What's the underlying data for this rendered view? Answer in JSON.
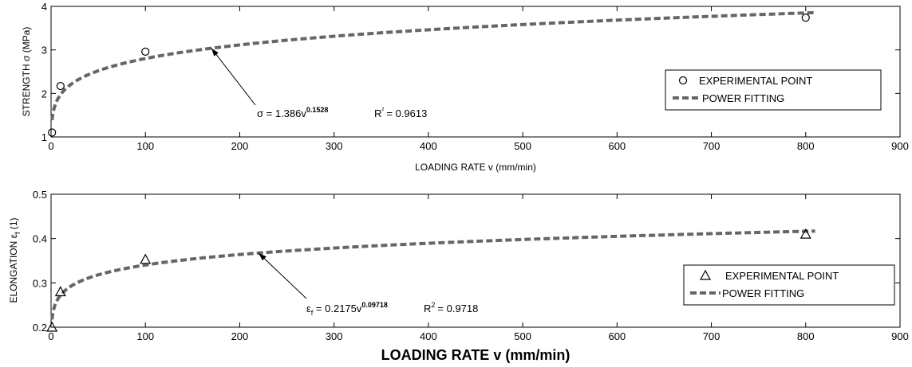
{
  "chart_data": [
    {
      "type": "scatter",
      "xlabel": "LOADING RATE v (mm/min)",
      "ylabel": "STRENGTH σ (MPa)",
      "xlim": [
        0,
        900
      ],
      "ylim": [
        1,
        4
      ],
      "xticks": [
        0,
        100,
        200,
        300,
        400,
        500,
        600,
        700,
        800,
        900
      ],
      "yticks": [
        1,
        2,
        3,
        4
      ],
      "legend_position": "right",
      "series": [
        {
          "name": "EXPERIMENTAL POINT",
          "kind": "marker",
          "marker": "circle",
          "points": [
            [
              1,
              1.1
            ],
            [
              10,
              2.17
            ],
            [
              100,
              2.96
            ],
            [
              800,
              3.74
            ]
          ]
        },
        {
          "name": "POWER FITTING",
          "kind": "dashed-line",
          "fit": {
            "a": 1.386,
            "b": 0.1528
          },
          "x_range": [
            1,
            810
          ]
        }
      ],
      "annotation": {
        "equation_lhs": "σ = 1.386v",
        "exponent": "0.1528",
        "r_label": "R",
        "r_sup": "²",
        "r_value": "= 0.9613",
        "arrow_to_x": 170
      },
      "color": "#666666"
    },
    {
      "type": "scatter",
      "xlabel": "LOADING RATE v (mm/min)",
      "ylabel": "ELONGATION ε",
      "ylabel_sub": "f",
      "ylabel_suffix": " (1)",
      "xlim": [
        0,
        900
      ],
      "ylim": [
        0.2,
        0.5
      ],
      "xticks": [
        0,
        100,
        200,
        300,
        400,
        500,
        600,
        700,
        800,
        900
      ],
      "yticks": [
        0.2,
        0.3,
        0.4,
        0.5
      ],
      "legend_position": "right",
      "series": [
        {
          "name": "EXPERIMENTAL POINT",
          "kind": "marker",
          "marker": "triangle",
          "points": [
            [
              1,
              0.2
            ],
            [
              10,
              0.28
            ],
            [
              100,
              0.353
            ],
            [
              800,
              0.41
            ]
          ]
        },
        {
          "name": "POWER FITTING",
          "kind": "dashed-line",
          "fit": {
            "a": 0.2175,
            "b": 0.09718
          },
          "x_range": [
            1,
            810
          ]
        }
      ],
      "annotation": {
        "equation_lhs_1": "ε",
        "equation_lhs_sub": "f",
        "equation_lhs_2": " = 0.2175v",
        "exponent": "0.09718",
        "r_label": "R",
        "r_sup": "2",
        "r_value": "= 0.9718",
        "arrow_to_x": 220
      },
      "color": "#666666"
    }
  ]
}
